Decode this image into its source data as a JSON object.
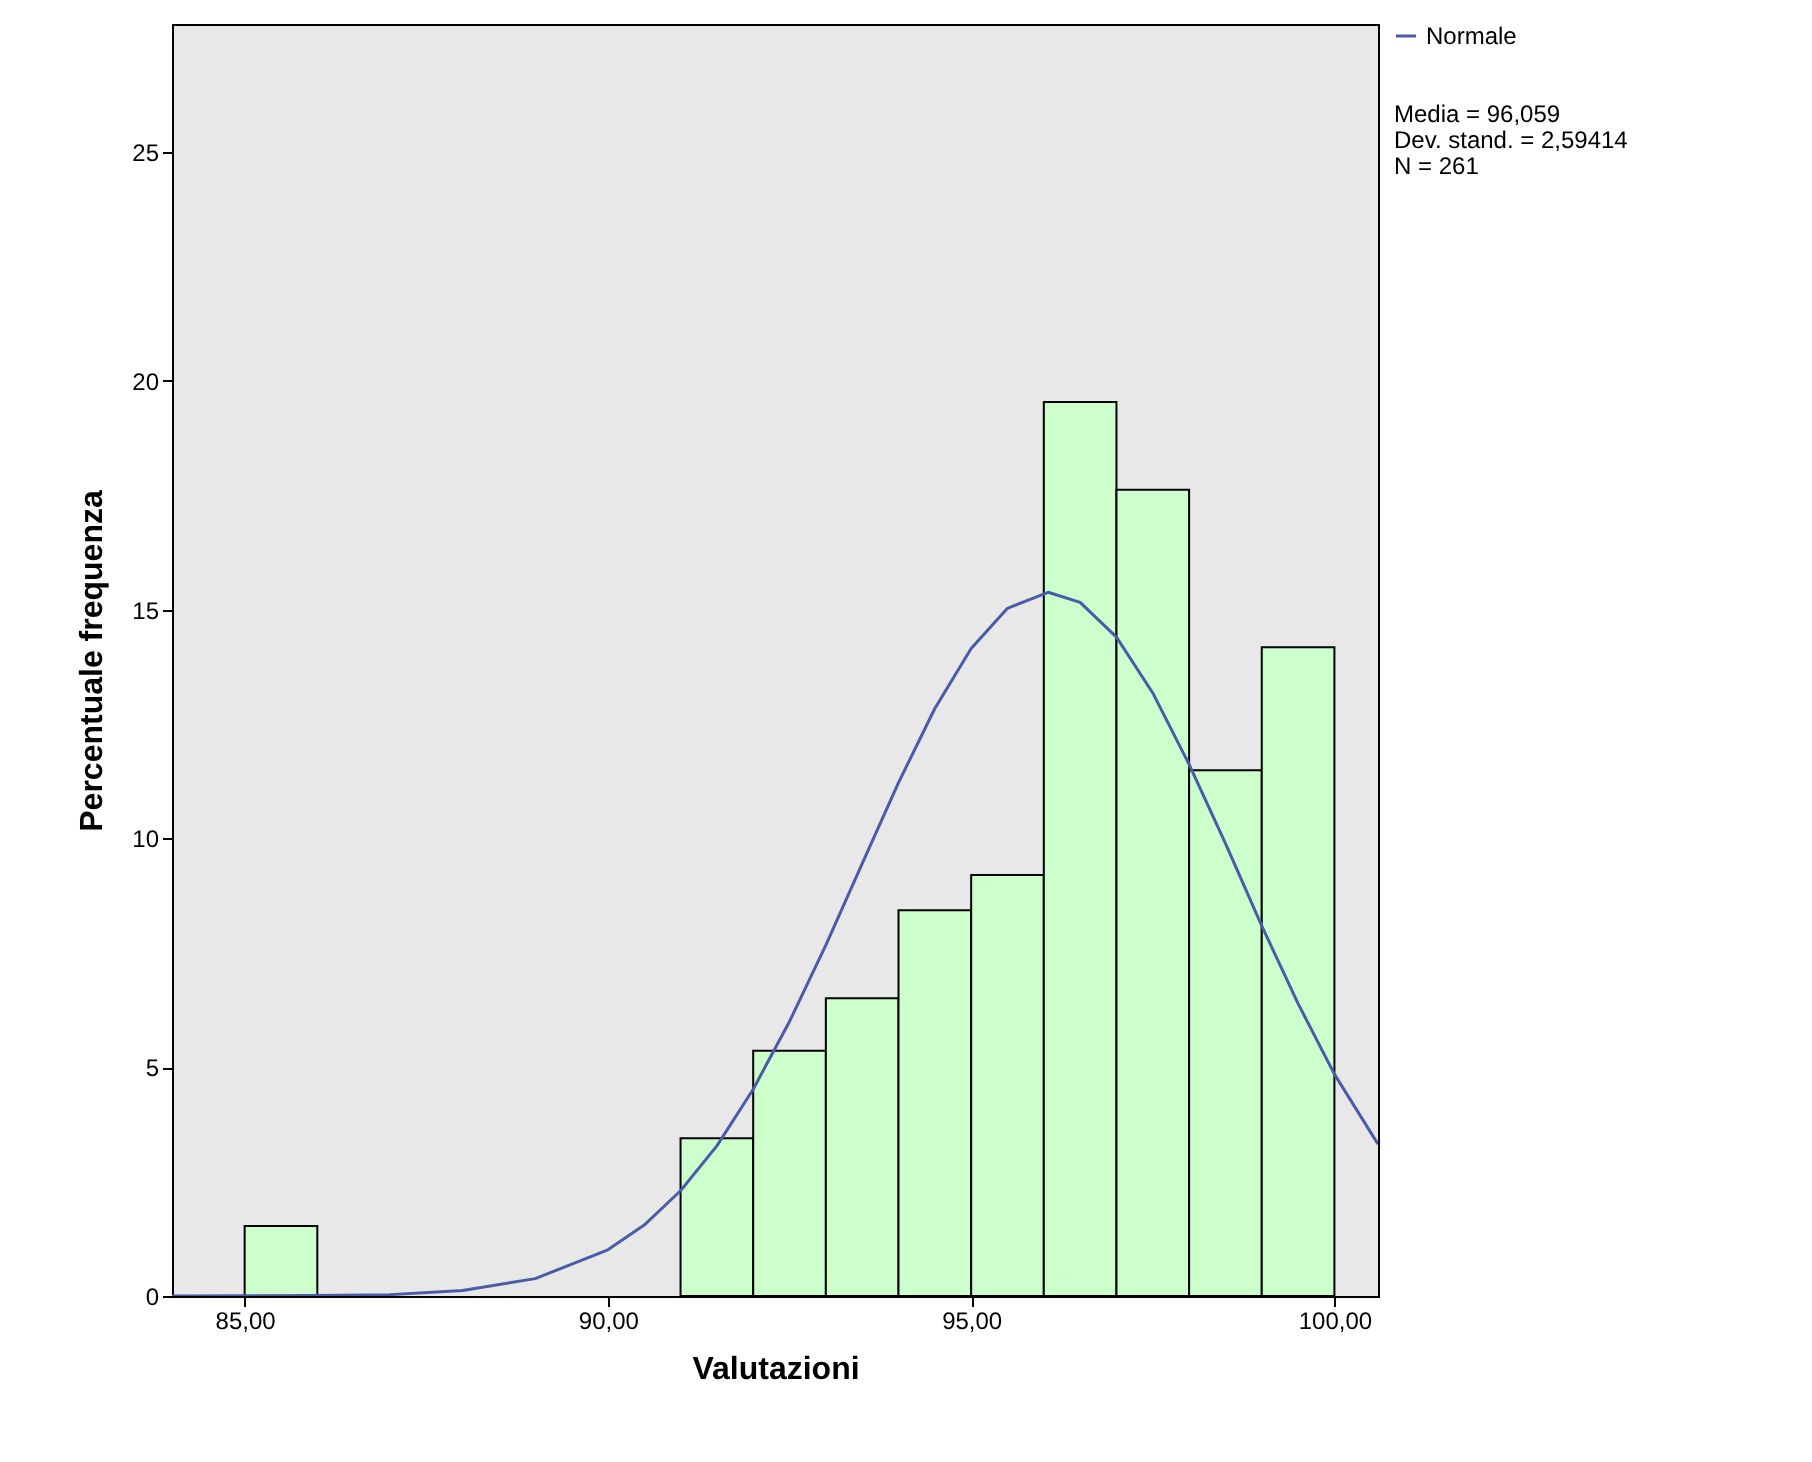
{
  "chart_data": {
    "type": "histogram",
    "xlabel": "Valutazioni",
    "ylabel": "Percentuale frequenza",
    "bins": [
      85,
      86,
      87,
      88,
      89,
      90,
      91,
      92,
      93,
      94,
      95,
      96,
      97,
      98,
      99,
      100
    ],
    "values": [
      1.53,
      0,
      0,
      0,
      0,
      0,
      3.45,
      5.36,
      6.51,
      8.43,
      9.2,
      19.54,
      17.62,
      11.49,
      14.18
    ],
    "color": "#ccffcc",
    "series": [
      {
        "type": "line",
        "name": "Normale",
        "color": "#4a5ba8",
        "x": [
          84,
          86,
          87,
          88,
          89,
          90,
          90.5,
          91,
          91.5,
          92,
          92.5,
          93,
          93.5,
          94,
          94.5,
          95,
          95.5,
          96.06,
          96.5,
          97,
          97.5,
          98,
          98.5,
          99,
          99.5,
          100,
          100.6
        ],
        "values": [
          0,
          0.01,
          0.03,
          0.12,
          0.38,
          1.01,
          1.55,
          2.3,
          3.28,
          4.52,
          6.0,
          7.67,
          9.45,
          11.22,
          12.84,
          14.15,
          15.03,
          15.38,
          15.16,
          14.4,
          13.18,
          11.62,
          9.89,
          8.09,
          6.39,
          4.85,
          3.32
        ]
      }
    ],
    "xlim": [
      84,
      100.6
    ],
    "xticks": [
      {
        "value": 85,
        "label": "85,00"
      },
      {
        "value": 90,
        "label": "90,00"
      },
      {
        "value": 95,
        "label": "95,00"
      },
      {
        "value": 100,
        "label": "100,00"
      }
    ],
    "ylim": [
      0,
      27.8
    ],
    "yticks": [
      0,
      5,
      10,
      15,
      20,
      25
    ],
    "legend": "top right",
    "annotations": [
      "Media = 96,059",
      "Dev. stand. = 2,59414",
      "N = 261"
    ]
  }
}
